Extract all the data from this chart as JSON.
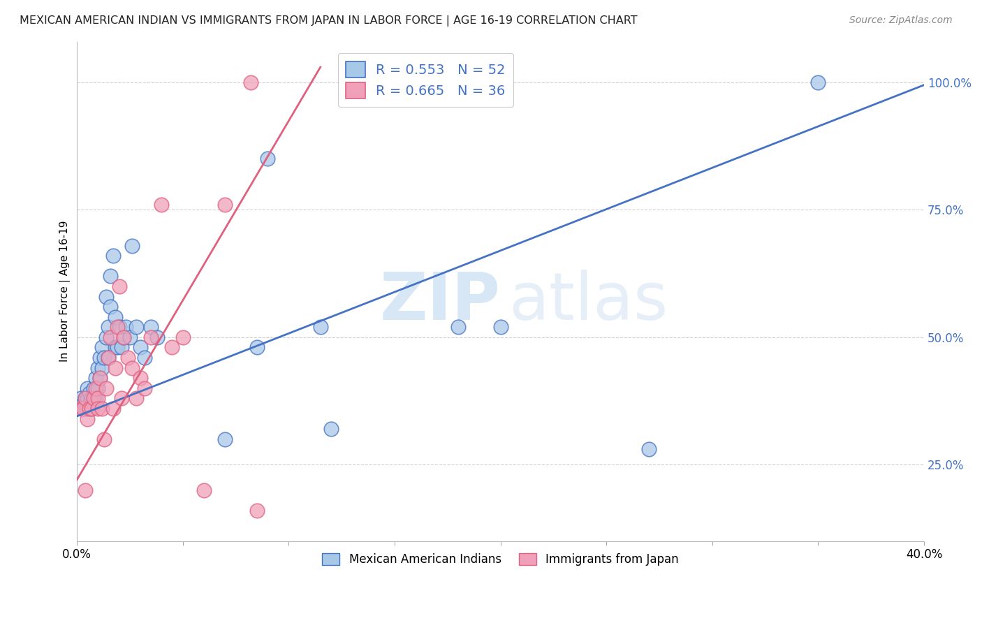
{
  "title": "MEXICAN AMERICAN INDIAN VS IMMIGRANTS FROM JAPAN IN LABOR FORCE | AGE 16-19 CORRELATION CHART",
  "source": "Source: ZipAtlas.com",
  "ylabel": "In Labor Force | Age 16-19",
  "xlim": [
    0.0,
    0.4
  ],
  "ylim": [
    0.1,
    1.08
  ],
  "yticks": [
    0.25,
    0.5,
    0.75,
    1.0
  ],
  "ytick_labels": [
    "25.0%",
    "50.0%",
    "75.0%",
    "100.0%"
  ],
  "xticks": [
    0.0,
    0.05,
    0.1,
    0.15,
    0.2,
    0.25,
    0.3,
    0.35,
    0.4
  ],
  "xtick_labels": [
    "0.0%",
    "",
    "",
    "",
    "",
    "",
    "",
    "",
    "40.0%"
  ],
  "legend_r1": "R = 0.553   N = 52",
  "legend_r2": "R = 0.665   N = 36",
  "color_blue": "#A8C8E8",
  "color_pink": "#F0A0B8",
  "color_blue_line": "#4472C4",
  "color_pink_line": "#E06080",
  "watermark_zip": "ZIP",
  "watermark_atlas": "atlas",
  "blue_line_x": [
    0.0,
    0.4
  ],
  "blue_line_y": [
    0.345,
    0.995
  ],
  "pink_line_x": [
    0.0,
    0.115
  ],
  "pink_line_y": [
    0.22,
    1.03
  ],
  "blue_scatter_x": [
    0.002,
    0.003,
    0.004,
    0.004,
    0.005,
    0.005,
    0.005,
    0.006,
    0.006,
    0.007,
    0.007,
    0.008,
    0.008,
    0.009,
    0.009,
    0.01,
    0.01,
    0.011,
    0.011,
    0.012,
    0.012,
    0.013,
    0.014,
    0.014,
    0.015,
    0.015,
    0.016,
    0.016,
    0.017,
    0.018,
    0.018,
    0.019,
    0.02,
    0.021,
    0.022,
    0.023,
    0.025,
    0.026,
    0.028,
    0.03,
    0.032,
    0.035,
    0.038,
    0.07,
    0.085,
    0.09,
    0.115,
    0.12,
    0.18,
    0.2,
    0.27,
    0.35
  ],
  "blue_scatter_y": [
    0.38,
    0.37,
    0.36,
    0.38,
    0.36,
    0.38,
    0.4,
    0.37,
    0.39,
    0.36,
    0.38,
    0.37,
    0.4,
    0.38,
    0.42,
    0.4,
    0.44,
    0.42,
    0.46,
    0.44,
    0.48,
    0.46,
    0.5,
    0.58,
    0.46,
    0.52,
    0.56,
    0.62,
    0.66,
    0.48,
    0.54,
    0.48,
    0.52,
    0.48,
    0.5,
    0.52,
    0.5,
    0.68,
    0.52,
    0.48,
    0.46,
    0.52,
    0.5,
    0.3,
    0.48,
    0.85,
    0.52,
    0.32,
    0.52,
    0.52,
    0.28,
    1.0
  ],
  "pink_scatter_x": [
    0.002,
    0.003,
    0.004,
    0.005,
    0.006,
    0.007,
    0.008,
    0.009,
    0.01,
    0.01,
    0.011,
    0.012,
    0.013,
    0.014,
    0.015,
    0.016,
    0.017,
    0.018,
    0.019,
    0.02,
    0.021,
    0.022,
    0.024,
    0.026,
    0.028,
    0.03,
    0.032,
    0.035,
    0.04,
    0.045,
    0.05,
    0.06,
    0.07,
    0.082,
    0.004,
    0.085
  ],
  "pink_scatter_y": [
    0.36,
    0.36,
    0.38,
    0.34,
    0.36,
    0.36,
    0.38,
    0.4,
    0.38,
    0.36,
    0.42,
    0.36,
    0.3,
    0.4,
    0.46,
    0.5,
    0.36,
    0.44,
    0.52,
    0.6,
    0.38,
    0.5,
    0.46,
    0.44,
    0.38,
    0.42,
    0.4,
    0.5,
    0.76,
    0.48,
    0.5,
    0.2,
    0.76,
    1.0,
    0.2,
    0.16
  ]
}
